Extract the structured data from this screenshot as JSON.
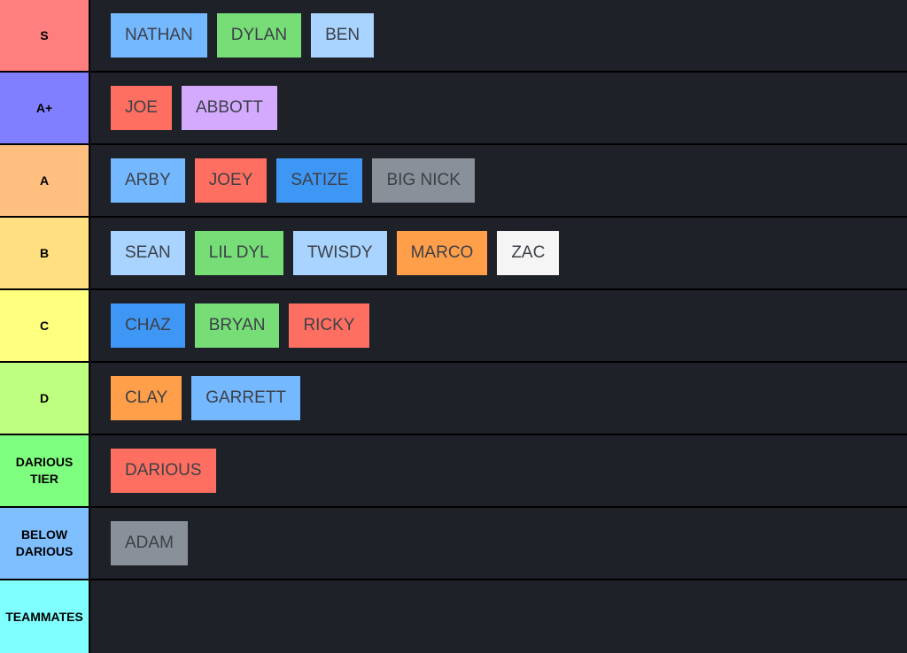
{
  "tiers": [
    {
      "label": "S",
      "color": "#ff7f7f",
      "items": [
        {
          "name": "NATHAN",
          "color": "#74b8ff"
        },
        {
          "name": "DYLAN",
          "color": "#77dd77"
        },
        {
          "name": "BEN",
          "color": "#a8d4ff"
        }
      ]
    },
    {
      "label": "A+",
      "color": "#7f7fff",
      "items": [
        {
          "name": "JOE",
          "color": "#ff6f61"
        },
        {
          "name": "ABBOTT",
          "color": "#d4aaff"
        }
      ]
    },
    {
      "label": "A",
      "color": "#ffbf7f",
      "items": [
        {
          "name": "ARBY",
          "color": "#74b8ff"
        },
        {
          "name": "JOEY",
          "color": "#ff6f61"
        },
        {
          "name": "SATIZE",
          "color": "#3f97f5"
        },
        {
          "name": "BIG NICK",
          "color": "#8a9099"
        }
      ]
    },
    {
      "label": "B",
      "color": "#ffdf7f",
      "items": [
        {
          "name": "SEAN",
          "color": "#a8d4ff"
        },
        {
          "name": "LIL DYL",
          "color": "#77dd77"
        },
        {
          "name": "TWISDY",
          "color": "#a8d4ff"
        },
        {
          "name": "MARCO",
          "color": "#ff9f4a"
        },
        {
          "name": "ZAC",
          "color": "#f5f5f5"
        }
      ]
    },
    {
      "label": "C",
      "color": "#ffff7f",
      "items": [
        {
          "name": "CHAZ",
          "color": "#3f97f5"
        },
        {
          "name": "BRYAN",
          "color": "#77dd77"
        },
        {
          "name": "RICKY",
          "color": "#ff6f61"
        }
      ]
    },
    {
      "label": "D",
      "color": "#bfff7f",
      "items": [
        {
          "name": "CLAY",
          "color": "#ff9f4a"
        },
        {
          "name": "GARRETT",
          "color": "#74b8ff"
        }
      ]
    },
    {
      "label": "DARIOUS\nTIER",
      "color": "#7fff7f",
      "items": [
        {
          "name": "DARIOUS",
          "color": "#ff6f61"
        }
      ]
    },
    {
      "label": "BELOW\nDARIOUS",
      "color": "#7fbfff",
      "items": [
        {
          "name": "ADAM",
          "color": "#8a9099"
        }
      ]
    },
    {
      "label": "TEAMMATES",
      "color": "#7fffff",
      "items": []
    }
  ]
}
